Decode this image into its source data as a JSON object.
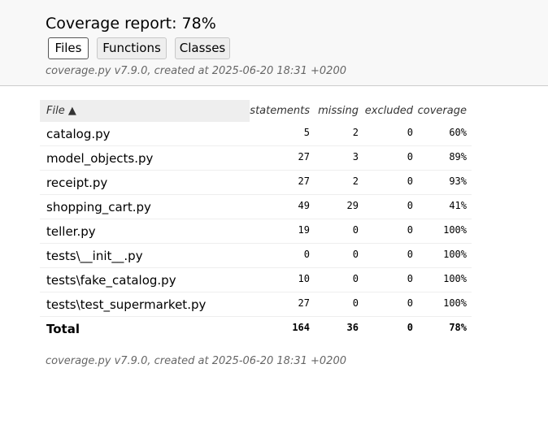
{
  "header": {
    "title": "Coverage report: 78%",
    "tabs": [
      "Files",
      "Functions",
      "Classes"
    ],
    "created": "coverage.py v7.9.0, created at 2025-06-20 18:31 +0200"
  },
  "table": {
    "columns": {
      "file": "File",
      "sort_indicator": "▲",
      "statements": "statements",
      "missing": "missing",
      "excluded": "excluded",
      "coverage": "coverage"
    },
    "rows": [
      {
        "file": "catalog.py",
        "statements": "5",
        "missing": "2",
        "excluded": "0",
        "coverage": "60%"
      },
      {
        "file": "model_objects.py",
        "statements": "27",
        "missing": "3",
        "excluded": "0",
        "coverage": "89%"
      },
      {
        "file": "receipt.py",
        "statements": "27",
        "missing": "2",
        "excluded": "0",
        "coverage": "93%"
      },
      {
        "file": "shopping_cart.py",
        "statements": "49",
        "missing": "29",
        "excluded": "0",
        "coverage": "41%"
      },
      {
        "file": "teller.py",
        "statements": "19",
        "missing": "0",
        "excluded": "0",
        "coverage": "100%"
      },
      {
        "file": "tests\\__init__.py",
        "statements": "0",
        "missing": "0",
        "excluded": "0",
        "coverage": "100%"
      },
      {
        "file": "tests\\fake_catalog.py",
        "statements": "10",
        "missing": "0",
        "excluded": "0",
        "coverage": "100%"
      },
      {
        "file": "tests\\test_supermarket.py",
        "statements": "27",
        "missing": "0",
        "excluded": "0",
        "coverage": "100%"
      }
    ],
    "total": {
      "file": "Total",
      "statements": "164",
      "missing": "36",
      "excluded": "0",
      "coverage": "78%"
    }
  },
  "footer": {
    "created": "coverage.py v7.9.0, created at 2025-06-20 18:31 +0200"
  }
}
